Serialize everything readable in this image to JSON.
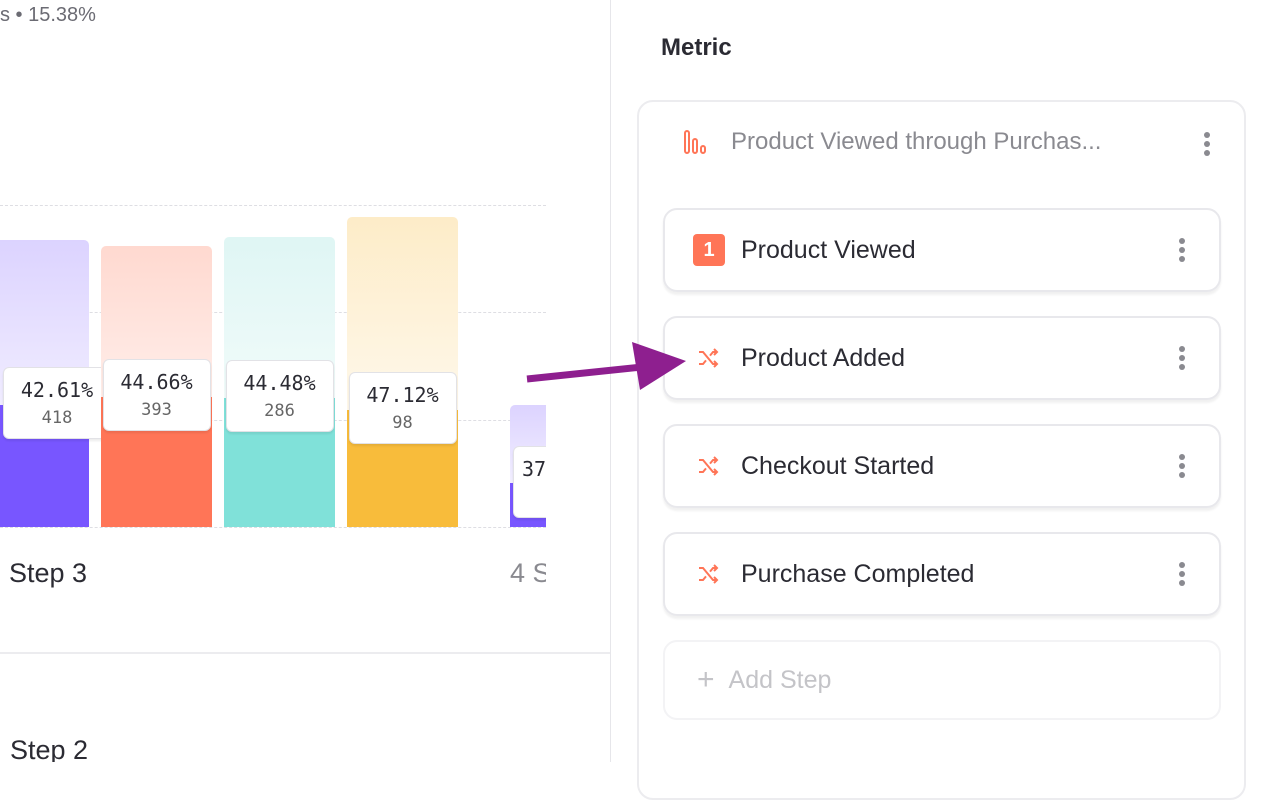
{
  "summary": "s • 15.38%",
  "chart": {
    "bars": [
      {
        "percent": "42.61%",
        "count": "418",
        "color": "#7856ff",
        "light": "#dcd3ff"
      },
      {
        "percent": "44.66%",
        "count": "393",
        "color": "#ff7557",
        "light": "#ffd9d0"
      },
      {
        "percent": "44.48%",
        "count": "286",
        "color": "#80e1d9",
        "light": "#dff6f4"
      },
      {
        "percent": "47.12%",
        "count": "98",
        "color": "#f8bc3b",
        "light": "#fdecc8"
      },
      {
        "percent": "37",
        "count": "",
        "color": "#7856ff",
        "light": "#dcd3ff"
      }
    ],
    "step_labels": [
      "Step 3",
      "4 S"
    ],
    "lower_label": "Step 2"
  },
  "metric": {
    "title": "Metric",
    "funnel_title": "Product Viewed through Purchas...",
    "steps": [
      {
        "label": "Product Viewed",
        "badge": "1",
        "icon": "number-badge"
      },
      {
        "label": "Product Added",
        "icon": "shuffle-icon"
      },
      {
        "label": "Checkout Started",
        "icon": "shuffle-icon"
      },
      {
        "label": "Purchase Completed",
        "icon": "shuffle-icon"
      }
    ],
    "add_step": "Add Step",
    "accent": "#ff7557"
  },
  "annotation_arrow_color": "#8e1f8f"
}
